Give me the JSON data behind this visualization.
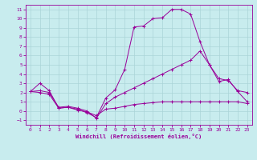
{
  "xlabel": "Windchill (Refroidissement éolien,°C)",
  "background_color": "#c8ecee",
  "grid_color": "#aad4d8",
  "line_color": "#990099",
  "xlim": [
    -0.5,
    23.5
  ],
  "ylim": [
    -1.5,
    11.5
  ],
  "xticks": [
    0,
    1,
    2,
    3,
    4,
    5,
    6,
    7,
    8,
    9,
    10,
    11,
    12,
    13,
    14,
    15,
    16,
    17,
    18,
    19,
    20,
    21,
    22,
    23
  ],
  "yticks": [
    -1,
    0,
    1,
    2,
    3,
    4,
    5,
    6,
    7,
    8,
    9,
    10,
    11
  ],
  "line1_x": [
    0,
    1,
    2,
    3,
    4,
    5,
    6,
    7,
    8,
    9,
    10,
    11,
    12,
    13,
    14,
    15,
    16,
    17,
    18,
    19,
    20,
    21,
    22,
    23
  ],
  "line1_y": [
    2.1,
    3.0,
    2.2,
    0.3,
    0.4,
    0.2,
    -0.2,
    -0.7,
    1.4,
    2.3,
    4.5,
    9.1,
    9.2,
    10.0,
    10.1,
    11.0,
    11.0,
    10.5,
    7.5,
    5.0,
    3.2,
    3.4,
    2.1,
    1.0
  ],
  "line2_x": [
    0,
    1,
    2,
    3,
    4,
    5,
    6,
    7,
    8,
    9,
    10,
    11,
    12,
    13,
    14,
    15,
    16,
    17,
    18,
    19,
    20,
    21,
    22,
    23
  ],
  "line2_y": [
    2.1,
    2.2,
    2.0,
    0.4,
    0.5,
    0.3,
    0.0,
    -0.8,
    0.8,
    1.5,
    2.0,
    2.5,
    3.0,
    3.5,
    4.0,
    4.5,
    5.0,
    5.5,
    6.5,
    5.0,
    3.5,
    3.3,
    2.2,
    2.0
  ],
  "line3_x": [
    0,
    1,
    2,
    3,
    4,
    5,
    6,
    7,
    8,
    9,
    10,
    11,
    12,
    13,
    14,
    15,
    16,
    17,
    18,
    19,
    20,
    21,
    22,
    23
  ],
  "line3_y": [
    2.1,
    2.0,
    1.8,
    0.3,
    0.4,
    0.1,
    -0.1,
    -0.5,
    0.2,
    0.3,
    0.5,
    0.7,
    0.8,
    0.9,
    1.0,
    1.0,
    1.0,
    1.0,
    1.0,
    1.0,
    1.0,
    1.0,
    1.0,
    0.8
  ]
}
